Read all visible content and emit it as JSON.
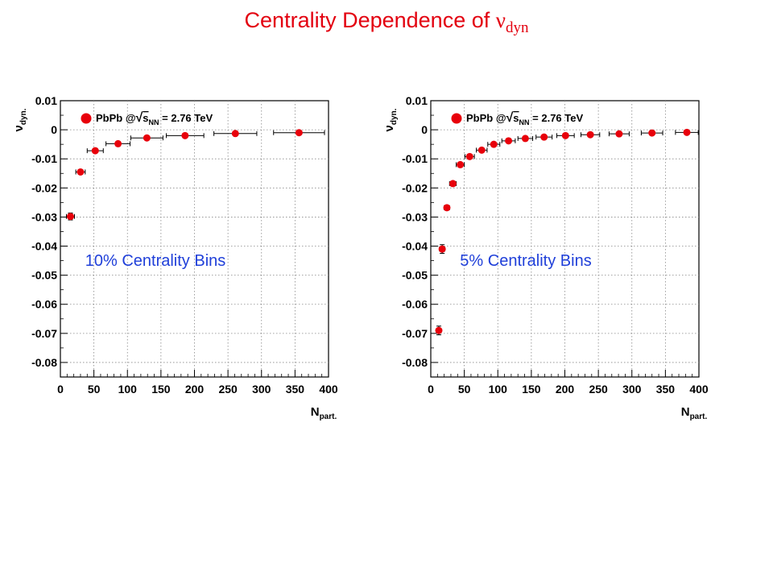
{
  "title": {
    "main": "Centrality Dependence of ",
    "symbol": "ν",
    "sub": "dyn"
  },
  "colors": {
    "title": "#e3000f",
    "marker": "#e8000b",
    "annotation": "#1f3fd9",
    "grid": "#888888"
  },
  "chart_data": [
    {
      "type": "scatter",
      "annotation": "10% Centrality Bins",
      "legend": {
        "placement": "top-left",
        "system": "PbPb @",
        "energy_prefix": "s",
        "energy_sub": "NN",
        "energy_value": " = 2.76 TeV"
      },
      "xlabel": "N",
      "xlabel_sub": "part.",
      "ylabel": "ν",
      "ylabel_sub": "dyn.",
      "xlim": [
        0,
        400
      ],
      "ylim": [
        -0.085,
        0.01
      ],
      "grid": true,
      "xticks": [
        "0",
        "50",
        "100",
        "150",
        "200",
        "250",
        "300",
        "350",
        "400"
      ],
      "yticks": [
        "0.01",
        "0",
        "-0.01",
        "-0.02",
        "-0.03",
        "-0.04",
        "-0.05",
        "-0.06",
        "-0.07",
        "-0.08"
      ],
      "x": [
        15,
        30,
        52,
        86,
        129,
        186,
        261,
        356
      ],
      "y": [
        -0.0298,
        -0.0145,
        -0.0072,
        -0.0048,
        -0.0028,
        -0.002,
        -0.0013,
        -0.001
      ],
      "xerr": [
        6,
        7,
        12,
        18,
        24,
        28,
        32,
        38
      ],
      "yerr": [
        0.0012,
        0.0006,
        0.0006,
        0.0005,
        0.0004,
        0.0004,
        0.0003,
        0.0003
      ]
    },
    {
      "type": "scatter",
      "annotation": "5% Centrality Bins",
      "legend": {
        "placement": "top-left",
        "system": "PbPb @",
        "energy_prefix": "s",
        "energy_sub": "NN",
        "energy_value": " = 2.76 TeV"
      },
      "xlabel": "N",
      "xlabel_sub": "part.",
      "ylabel": "ν",
      "ylabel_sub": "dyn.",
      "xlim": [
        0,
        400
      ],
      "ylim": [
        -0.085,
        0.01
      ],
      "grid": true,
      "xticks": [
        "0",
        "50",
        "100",
        "150",
        "200",
        "250",
        "300",
        "350",
        "400"
      ],
      "yticks": [
        "0.01",
        "0",
        "-0.01",
        "-0.02",
        "-0.03",
        "-0.04",
        "-0.05",
        "-0.06",
        "-0.07",
        "-0.08"
      ],
      "x": [
        12,
        17,
        24,
        33,
        44,
        58,
        76,
        94,
        116,
        141,
        169,
        201,
        238,
        281,
        330,
        382
      ],
      "y": [
        -0.069,
        -0.041,
        -0.0268,
        -0.0185,
        -0.012,
        -0.0092,
        -0.007,
        -0.005,
        -0.0038,
        -0.003,
        -0.0025,
        -0.002,
        -0.0017,
        -0.0014,
        -0.0011,
        -0.0009
      ],
      "xerr": [
        3,
        4,
        4,
        5,
        6,
        7,
        8,
        9,
        10,
        11,
        12,
        13,
        14,
        15,
        16,
        17
      ],
      "yerr": [
        0.0015,
        0.0015,
        0.0008,
        0.0006,
        0.0006,
        0.0005,
        0.0004,
        0.0004,
        0.0003,
        0.0003,
        0.0003,
        0.0003,
        0.0002,
        0.0002,
        0.0002,
        0.0002
      ]
    }
  ]
}
